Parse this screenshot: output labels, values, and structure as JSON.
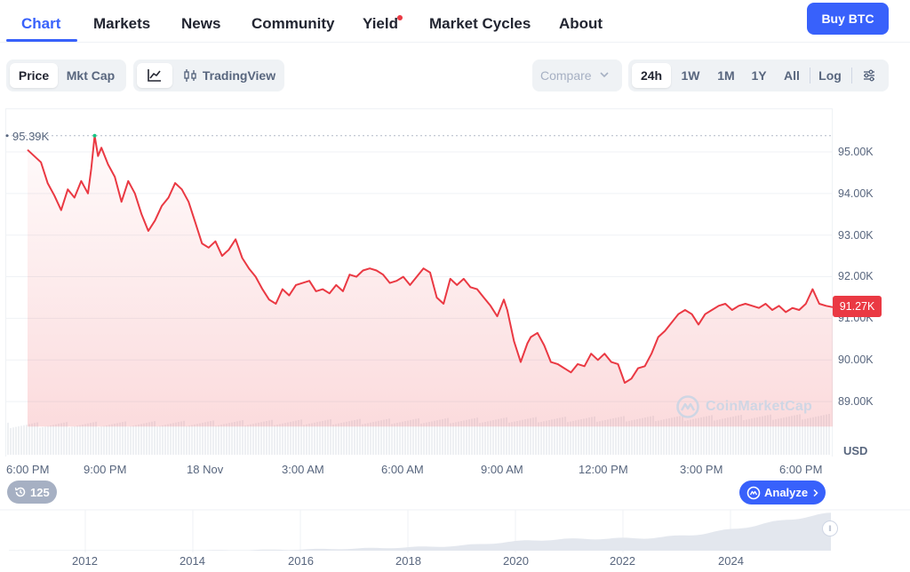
{
  "nav": {
    "tabs": [
      {
        "label": "Chart",
        "active": true
      },
      {
        "label": "Markets"
      },
      {
        "label": "News"
      },
      {
        "label": "Community"
      },
      {
        "label": "Yield",
        "dot": true
      },
      {
        "label": "Market Cycles"
      },
      {
        "label": "About"
      }
    ],
    "buy_label": "Buy BTC"
  },
  "toolbar": {
    "price_label": "Price",
    "mktcap_label": "Mkt Cap",
    "line_icon": "line-chart-icon",
    "tradingview_icon": "candlestick-icon",
    "tradingview_label": "TradingView",
    "compare_label": "Compare",
    "ranges": [
      "24h",
      "1W",
      "1M",
      "1Y",
      "All"
    ],
    "active_range": "24h",
    "log_label": "Log",
    "settings_icon": "sliders-icon"
  },
  "colors": {
    "accent": "#3861fb",
    "line": "#ea3943",
    "max_marker": "#16c784"
  },
  "chart_data": {
    "type": "area",
    "currency_label": "USD",
    "ylim": [
      88400,
      95800
    ],
    "y_ticks": [
      "95.00K",
      "94.00K",
      "93.00K",
      "92.00K",
      "91.00K",
      "90.00K",
      "89.00K"
    ],
    "y_tick_values": [
      95000,
      94000,
      93000,
      92000,
      91000,
      90000,
      89000
    ],
    "x_ticks": [
      "6:00 PM",
      "9:00 PM",
      "18 Nov",
      "3:00 AM",
      "6:00 AM",
      "9:00 AM",
      "12:00 PM",
      "3:00 PM",
      "6:00 PM"
    ],
    "x_tick_hours": [
      0,
      3,
      6,
      9,
      12,
      15,
      18,
      21,
      24
    ],
    "max_label": "95.39K",
    "max_value": 95390,
    "current_label": "91.27K",
    "current_value": 91270,
    "grid": true,
    "points": [
      [
        0.0,
        95050
      ],
      [
        0.2,
        94900
      ],
      [
        0.4,
        94750
      ],
      [
        0.6,
        94250
      ],
      [
        0.8,
        93950
      ],
      [
        1.0,
        93600
      ],
      [
        1.2,
        94100
      ],
      [
        1.4,
        93900
      ],
      [
        1.6,
        94300
      ],
      [
        1.8,
        94000
      ],
      [
        1.9,
        94600
      ],
      [
        2.0,
        95390
      ],
      [
        2.1,
        94900
      ],
      [
        2.2,
        95100
      ],
      [
        2.4,
        94700
      ],
      [
        2.6,
        94400
      ],
      [
        2.8,
        93800
      ],
      [
        3.0,
        94300
      ],
      [
        3.2,
        94000
      ],
      [
        3.4,
        93500
      ],
      [
        3.6,
        93100
      ],
      [
        3.8,
        93350
      ],
      [
        4.0,
        93700
      ],
      [
        4.2,
        93900
      ],
      [
        4.4,
        94250
      ],
      [
        4.6,
        94100
      ],
      [
        4.8,
        93800
      ],
      [
        5.0,
        93300
      ],
      [
        5.2,
        92800
      ],
      [
        5.4,
        92700
      ],
      [
        5.6,
        92850
      ],
      [
        5.8,
        92500
      ],
      [
        6.0,
        92650
      ],
      [
        6.2,
        92900
      ],
      [
        6.4,
        92450
      ],
      [
        6.6,
        92200
      ],
      [
        6.8,
        92000
      ],
      [
        7.0,
        91700
      ],
      [
        7.2,
        91450
      ],
      [
        7.4,
        91350
      ],
      [
        7.6,
        91700
      ],
      [
        7.8,
        91550
      ],
      [
        8.0,
        91800
      ],
      [
        8.2,
        91850
      ],
      [
        8.4,
        91900
      ],
      [
        8.6,
        91650
      ],
      [
        8.8,
        91700
      ],
      [
        9.0,
        91600
      ],
      [
        9.2,
        91800
      ],
      [
        9.4,
        91650
      ],
      [
        9.6,
        92050
      ],
      [
        9.8,
        92000
      ],
      [
        10.0,
        92150
      ],
      [
        10.2,
        92200
      ],
      [
        10.4,
        92150
      ],
      [
        10.6,
        92050
      ],
      [
        10.8,
        91850
      ],
      [
        11.0,
        91900
      ],
      [
        11.2,
        92000
      ],
      [
        11.4,
        91800
      ],
      [
        11.6,
        92000
      ],
      [
        11.8,
        92200
      ],
      [
        12.0,
        92100
      ],
      [
        12.2,
        91500
      ],
      [
        12.4,
        91350
      ],
      [
        12.6,
        91950
      ],
      [
        12.8,
        91800
      ],
      [
        13.0,
        91950
      ],
      [
        13.2,
        91750
      ],
      [
        13.4,
        91700
      ],
      [
        13.6,
        91500
      ],
      [
        13.8,
        91300
      ],
      [
        14.0,
        91050
      ],
      [
        14.2,
        91450
      ],
      [
        14.3,
        91200
      ],
      [
        14.5,
        90450
      ],
      [
        14.7,
        89950
      ],
      [
        14.9,
        90400
      ],
      [
        15.0,
        90550
      ],
      [
        15.2,
        90650
      ],
      [
        15.4,
        90350
      ],
      [
        15.6,
        89950
      ],
      [
        15.8,
        89900
      ],
      [
        16.0,
        89800
      ],
      [
        16.2,
        89700
      ],
      [
        16.4,
        89900
      ],
      [
        16.6,
        89850
      ],
      [
        16.8,
        90150
      ],
      [
        17.0,
        90000
      ],
      [
        17.2,
        90150
      ],
      [
        17.4,
        89950
      ],
      [
        17.6,
        89900
      ],
      [
        17.8,
        89450
      ],
      [
        18.0,
        89550
      ],
      [
        18.2,
        89800
      ],
      [
        18.4,
        89850
      ],
      [
        18.6,
        90150
      ],
      [
        18.8,
        90550
      ],
      [
        19.0,
        90700
      ],
      [
        19.2,
        90900
      ],
      [
        19.4,
        91100
      ],
      [
        19.6,
        91200
      ],
      [
        19.8,
        91100
      ],
      [
        20.0,
        90850
      ],
      [
        20.2,
        91100
      ],
      [
        20.4,
        91200
      ],
      [
        20.6,
        91300
      ],
      [
        20.8,
        91350
      ],
      [
        21.0,
        91200
      ],
      [
        21.2,
        91300
      ],
      [
        21.4,
        91350
      ],
      [
        21.6,
        91300
      ],
      [
        21.8,
        91250
      ],
      [
        22.0,
        91350
      ],
      [
        22.2,
        91200
      ],
      [
        22.4,
        91300
      ],
      [
        22.6,
        91150
      ],
      [
        22.8,
        91250
      ],
      [
        23.0,
        91200
      ],
      [
        23.2,
        91350
      ],
      [
        23.4,
        91700
      ],
      [
        23.6,
        91350
      ],
      [
        23.8,
        91300
      ],
      [
        24.0,
        91270
      ]
    ]
  },
  "overview": {
    "year_labels": [
      "2012",
      "2014",
      "2016",
      "2018",
      "2020",
      "2022",
      "2024"
    ],
    "year_values": [
      2012,
      2014,
      2016,
      2018,
      2020,
      2022,
      2024
    ]
  },
  "history_count": "125",
  "analyze_label": "Analyze",
  "watermark_label": "CoinMarketCap"
}
